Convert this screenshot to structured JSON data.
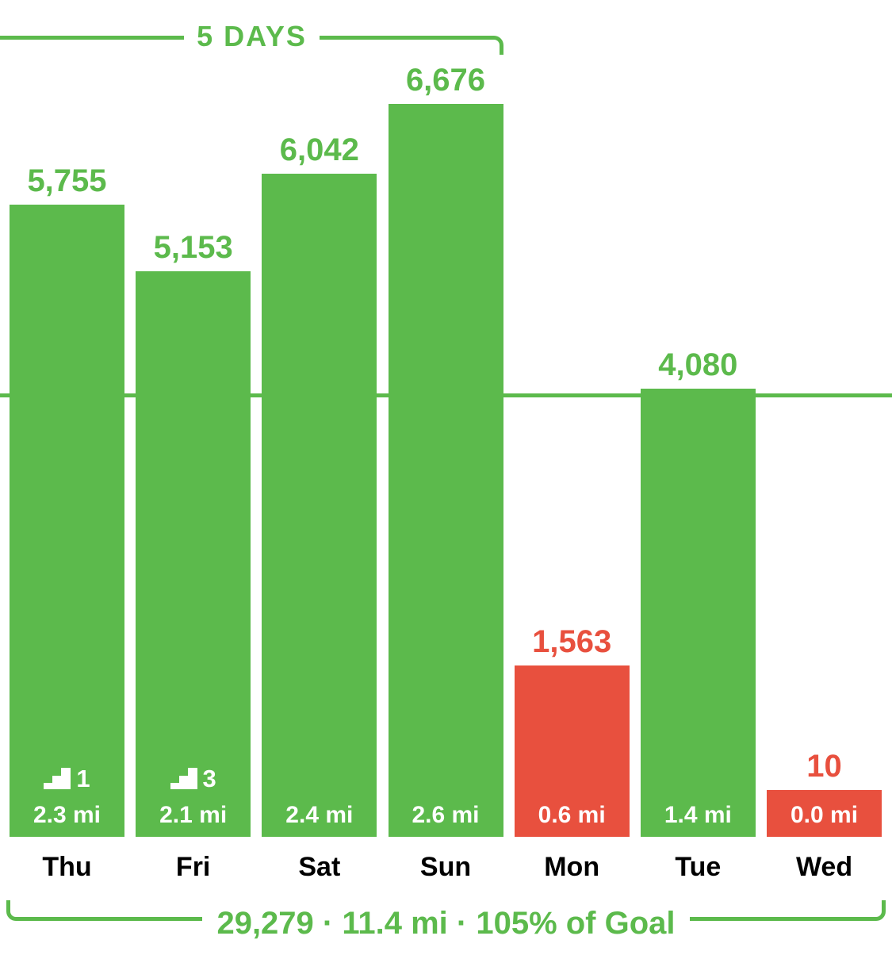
{
  "chart_data": {
    "type": "bar",
    "title": "",
    "categories": [
      "Thu",
      "Fri",
      "Sat",
      "Sun",
      "Mon",
      "Tue",
      "Wed"
    ],
    "values": [
      5755,
      5153,
      6042,
      6676,
      1563,
      4080,
      10
    ],
    "ylim": [
      0,
      6900
    ],
    "goal_line_steps": 4000,
    "grid": false,
    "streak_label": "5 DAYS",
    "summary_label": "29,279 · 11.4 mi · 105% of Goal",
    "colors": {
      "green": "#5CBA4C",
      "red": "#E8503E",
      "day_label": "#000000",
      "inner_text": "#FFFFFF",
      "background": "#FFFFFF"
    },
    "bars": [
      {
        "day": "Thu",
        "steps": 5755,
        "steps_label": "5,755",
        "miles": "2.3 mi",
        "color": "green",
        "flights": "1"
      },
      {
        "day": "Fri",
        "steps": 5153,
        "steps_label": "5,153",
        "miles": "2.1 mi",
        "color": "green",
        "flights": "3"
      },
      {
        "day": "Sat",
        "steps": 6042,
        "steps_label": "6,042",
        "miles": "2.4 mi",
        "color": "green",
        "flights": null
      },
      {
        "day": "Sun",
        "steps": 6676,
        "steps_label": "6,676",
        "miles": "2.6 mi",
        "color": "green",
        "flights": null
      },
      {
        "day": "Mon",
        "steps": 1563,
        "steps_label": "1,563",
        "miles": "0.6 mi",
        "color": "red",
        "flights": null
      },
      {
        "day": "Tue",
        "steps": 4080,
        "steps_label": "4,080",
        "miles": "1.4 mi",
        "color": "green",
        "flights": null
      },
      {
        "day": "Wed",
        "steps": 10,
        "steps_label": "10",
        "miles": "0.0 mi",
        "color": "red",
        "flights": null
      }
    ]
  }
}
